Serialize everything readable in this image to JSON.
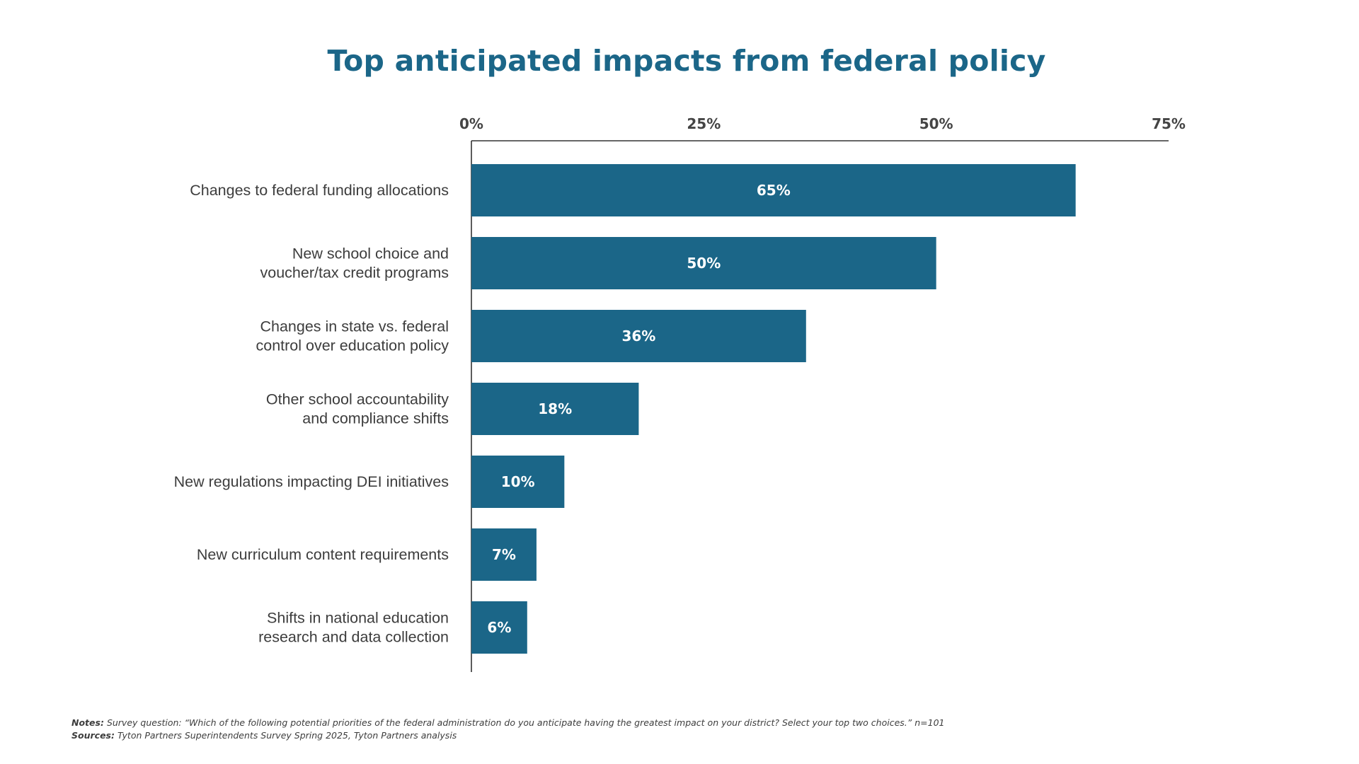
{
  "colors": {
    "bar": "#1b6688",
    "title": "#1b6688",
    "axis": "#333333",
    "label_text": "#3d3d3d",
    "value_text": "#ffffff"
  },
  "chart_data": {
    "type": "bar",
    "orientation": "horizontal",
    "title": "Top anticipated impacts from federal policy",
    "categories": [
      [
        "Changes to federal funding allocations"
      ],
      [
        "New school choice and",
        "voucher/tax credit programs"
      ],
      [
        "Changes in state vs. federal",
        "control over education policy"
      ],
      [
        "Other school accountability",
        "and compliance shifts"
      ],
      [
        "New regulations impacting DEI initiatives"
      ],
      [
        "New curriculum content requirements"
      ],
      [
        "Shifts in national education",
        "research and data collection"
      ]
    ],
    "values": [
      65,
      50,
      36,
      18,
      10,
      7,
      6
    ],
    "value_labels": [
      "65%",
      "50%",
      "36%",
      "18%",
      "10%",
      "7%",
      "6%"
    ],
    "xlim": [
      0,
      75
    ],
    "x_ticks": [
      0,
      25,
      50,
      75
    ],
    "x_tick_labels": [
      "0%",
      "25%",
      "50%",
      "75%"
    ],
    "axis_position": "top",
    "grid": false,
    "legend": "none"
  },
  "footer": {
    "notes_label": "Notes:",
    "notes_text": "Survey question: “Which of the following potential priorities of the federal administration do you anticipate having the greatest impact on your district? Select your top two choices.” n=101",
    "sources_label": "Sources:",
    "sources_text": "Tyton Partners Superintendents Survey Spring 2025, Tyton Partners analysis"
  }
}
